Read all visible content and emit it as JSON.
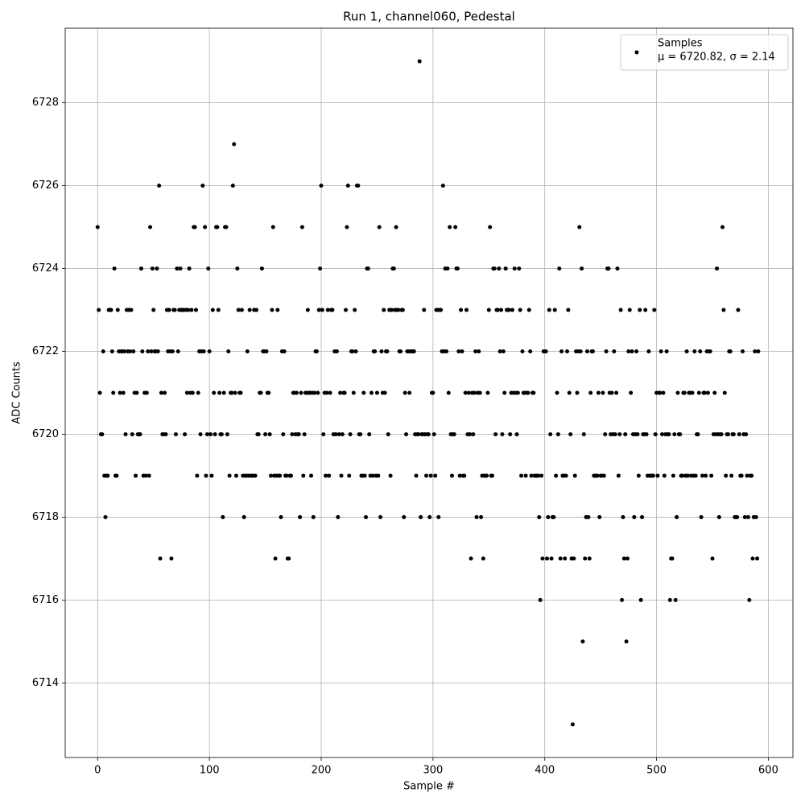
{
  "chart_data": {
    "type": "scatter",
    "title": "Run 1, channel060, Pedestal",
    "x_label": "Sample #",
    "y_label": "ADC Counts",
    "xlim": [
      -29,
      622
    ],
    "ylim": [
      6712.2,
      6729.8
    ],
    "xticks": [
      0,
      100,
      200,
      300,
      400,
      500,
      600
    ],
    "yticks": [
      6714,
      6716,
      6718,
      6720,
      6722,
      6724,
      6726,
      6728
    ],
    "grid": true,
    "legend": "upper right",
    "series": [
      {
        "name": "Samples",
        "label": "μ = 6720.82, σ = 2.14",
        "color": "#000000",
        "x": [
          0,
          1,
          2,
          3,
          4,
          5,
          6,
          7,
          8,
          9,
          10,
          11,
          12,
          13,
          14,
          15,
          16,
          17,
          18,
          19,
          20,
          21,
          22,
          23,
          24,
          25,
          26,
          27,
          28,
          29,
          30,
          31,
          32,
          33,
          34,
          35,
          36,
          37,
          38,
          39,
          40,
          41,
          42,
          43,
          44,
          45,
          46,
          47,
          48,
          49,
          50,
          51,
          52,
          53,
          54,
          55,
          56,
          57,
          58,
          59,
          60,
          61,
          62,
          63,
          64,
          65,
          66,
          67,
          68,
          69,
          70,
          71,
          72,
          73,
          74,
          75,
          76,
          77,
          78,
          79,
          80,
          81,
          82,
          83,
          84,
          85,
          86,
          87,
          88,
          89,
          90,
          91,
          92,
          93,
          94,
          95,
          96,
          97,
          98,
          99,
          100,
          101,
          102,
          103,
          104,
          105,
          106,
          107,
          108,
          109,
          110,
          111,
          112,
          113,
          114,
          115,
          116,
          117,
          118,
          119,
          120,
          121,
          122,
          123,
          124,
          125,
          126,
          127,
          128,
          129,
          130,
          131,
          132,
          133,
          134,
          135,
          136,
          137,
          138,
          139,
          140,
          141,
          142,
          143,
          144,
          145,
          146,
          147,
          148,
          149,
          150,
          151,
          152,
          153,
          154,
          155,
          156,
          157,
          158,
          159,
          160,
          161,
          162,
          163,
          164,
          165,
          166,
          167,
          168,
          169,
          170,
          171,
          172,
          173,
          174,
          175,
          176,
          177,
          178,
          179,
          180,
          181,
          182,
          183,
          184,
          185,
          186,
          187,
          188,
          189,
          190,
          191,
          192,
          193,
          194,
          195,
          196,
          197,
          198,
          199,
          200,
          201,
          202,
          203,
          204,
          205,
          206,
          207,
          208,
          209,
          210,
          211,
          212,
          213,
          214,
          215,
          216,
          217,
          218,
          219,
          220,
          221,
          222,
          223,
          224,
          225,
          226,
          227,
          228,
          229,
          230,
          231,
          232,
          233,
          234,
          235,
          236,
          237,
          238,
          239,
          240,
          241,
          242,
          243,
          244,
          245,
          246,
          247,
          248,
          249,
          250,
          251,
          252,
          253,
          254,
          255,
          256,
          257,
          258,
          259,
          260,
          261,
          262,
          263,
          264,
          265,
          266,
          267,
          268,
          269,
          270,
          271,
          272,
          273,
          274,
          275,
          276,
          277,
          278,
          279,
          280,
          281,
          282,
          283,
          284,
          285,
          286,
          287,
          288,
          289,
          290,
          291,
          292,
          293,
          294,
          295,
          296,
          297,
          298,
          299,
          300,
          301,
          302,
          303,
          304,
          305,
          306,
          307,
          308,
          309,
          310,
          311,
          312,
          313,
          314,
          315,
          316,
          317,
          318,
          319,
          320,
          321,
          322,
          323,
          324,
          325,
          326,
          327,
          328,
          329,
          330,
          331,
          332,
          333,
          334,
          335,
          336,
          337,
          338,
          339,
          340,
          341,
          342,
          343,
          344,
          345,
          346,
          347,
          348,
          349,
          350,
          351,
          352,
          353,
          354,
          355,
          356,
          357,
          358,
          359,
          360,
          361,
          362,
          363,
          364,
          365,
          366,
          367,
          368,
          369,
          370,
          371,
          372,
          373,
          374,
          375,
          376,
          377,
          378,
          379,
          380,
          381,
          382,
          383,
          384,
          385,
          386,
          387,
          388,
          389,
          390,
          391,
          392,
          393,
          394,
          395,
          396,
          397,
          398,
          399,
          400,
          401,
          402,
          403,
          404,
          405,
          406,
          407,
          408,
          409,
          410,
          411,
          412,
          413,
          414,
          415,
          416,
          417,
          418,
          419,
          420,
          421,
          422,
          423,
          424,
          425,
          426,
          427,
          428,
          429,
          430,
          431,
          432,
          433,
          434,
          435,
          436,
          437,
          438,
          439,
          440,
          441,
          442,
          443,
          444,
          445,
          446,
          447,
          448,
          449,
          450,
          451,
          452,
          453,
          454,
          455,
          456,
          457,
          458,
          459,
          460,
          461,
          462,
          463,
          464,
          465,
          466,
          467,
          468,
          469,
          470,
          471,
          472,
          473,
          474,
          475,
          476,
          477,
          478,
          479,
          480,
          481,
          482,
          483,
          484,
          485,
          486,
          487,
          488,
          489,
          490,
          491,
          492,
          493,
          494,
          495,
          496,
          497,
          498,
          499,
          500,
          501,
          502,
          503,
          504,
          505,
          506,
          507,
          508,
          509,
          510,
          511,
          512,
          513,
          514,
          515,
          516,
          517,
          518,
          519,
          520,
          521,
          522,
          523,
          524,
          525,
          526,
          527,
          528,
          529,
          530,
          531,
          532,
          533,
          534,
          535,
          536,
          537,
          538,
          539,
          540,
          541,
          542,
          543,
          544,
          545,
          546,
          547,
          548,
          549,
          550,
          551,
          552,
          553,
          554,
          555,
          556,
          557,
          558,
          559,
          560,
          561,
          562,
          563,
          564,
          565,
          566,
          567,
          568,
          569,
          570,
          571,
          572,
          573,
          574,
          575,
          576,
          577,
          578,
          579,
          580,
          581,
          582,
          583,
          584,
          585,
          586,
          587,
          588,
          589,
          590,
          591
        ],
        "values": [
          6725,
          6723,
          6721,
          6720,
          6720,
          6722,
          6719,
          6718,
          6719,
          6719,
          6723,
          6723,
          6723,
          6722,
          6721,
          6724,
          6719,
          6719,
          6723,
          6722,
          6721,
          6722,
          6722,
          6721,
          6722,
          6720,
          6723,
          6722,
          6723,
          6722,
          6723,
          6720,
          6722,
          6721,
          6719,
          6721,
          6720,
          6720,
          6720,
          6724,
          6722,
          6719,
          6721,
          6719,
          6721,
          6722,
          6719,
          6725,
          6722,
          6724,
          6723,
          6722,
          6722,
          6724,
          6722,
          6726,
          6717,
          6721,
          6720,
          6720,
          6721,
          6720,
          6723,
          6722,
          6723,
          6722,
          6717,
          6722,
          6723,
          6723,
          6720,
          6724,
          6722,
          6723,
          6724,
          6723,
          6723,
          6723,
          6720,
          6723,
          6721,
          6723,
          6724,
          6721,
          6723,
          6721,
          6725,
          6725,
          6723,
          6719,
          6721,
          6722,
          6720,
          6722,
          6726,
          6722,
          6725,
          6719,
          6720,
          6724,
          6722,
          6720,
          6719,
          6723,
          6721,
          6720,
          6725,
          6725,
          6723,
          6721,
          6720,
          6720,
          6718,
          6721,
          6725,
          6725,
          6720,
          6722,
          6719,
          6721,
          6721,
          6726,
          6727,
          6721,
          6719,
          6724,
          6723,
          6721,
          6721,
          6723,
          6719,
          6718,
          6719,
          6719,
          6722,
          6719,
          6723,
          6719,
          6719,
          6719,
          6723,
          6719,
          6723,
          6720,
          6720,
          6721,
          6721,
          6724,
          6722,
          6722,
          6720,
          6722,
          6721,
          6721,
          6720,
          6719,
          6723,
          6725,
          6719,
          6717,
          6719,
          6723,
          6719,
          6719,
          6718,
          6722,
          6720,
          6722,
          6719,
          6719,
          6717,
          6717,
          6719,
          6719,
          6720,
          6721,
          6721,
          6720,
          6721,
          6720,
          6720,
          6718,
          6721,
          6725,
          6719,
          6720,
          6721,
          6721,
          6723,
          6721,
          6721,
          6719,
          6721,
          6718,
          6721,
          6722,
          6722,
          6721,
          6723,
          6724,
          6726,
          6723,
          6720,
          6721,
          6719,
          6721,
          6723,
          6719,
          6721,
          6723,
          6723,
          6720,
          6722,
          6720,
          6722,
          6718,
          6720,
          6721,
          6719,
          6720,
          6721,
          6721,
          6723,
          6725,
          6726,
          6719,
          6720,
          6722,
          6722,
          6721,
          6723,
          6722,
          6726,
          6726,
          6720,
          6720,
          6719,
          6719,
          6721,
          6719,
          6718,
          6724,
          6724,
          6720,
          6719,
          6721,
          6719,
          6722,
          6722,
          6719,
          6721,
          6719,
          6725,
          6718,
          6722,
          6721,
          6723,
          6721,
          6722,
          6722,
          6720,
          6723,
          6719,
          6723,
          6724,
          6724,
          6723,
          6725,
          6723,
          6723,
          6722,
          6722,
          6723,
          6723,
          6718,
          6721,
          6720,
          6722,
          6722,
          6721,
          6722,
          6722,
          6722,
          6722,
          6720,
          6719,
          6720,
          6720,
          6729,
          6718,
          6720,
          6720,
          6723,
          6720,
          6719,
          6720,
          6720,
          6718,
          6719,
          6721,
          6721,
          6720,
          6719,
          6723,
          6723,
          6718,
          6723,
          6723,
          6722,
          6726,
          6722,
          6724,
          6722,
          6724,
          6721,
          6725,
          6720,
          6719,
          6720,
          6720,
          6725,
          6724,
          6724,
          6722,
          6719,
          6723,
          6722,
          6719,
          6719,
          6721,
          6723,
          6720,
          6721,
          6720,
          6717,
          6721,
          6720,
          6721,
          6722,
          6718,
          6721,
          6722,
          6721,
          6718,
          6719,
          6717,
          6719,
          6719,
          6719,
          6721,
          6723,
          6725,
          6719,
          6719,
          6724,
          6724,
          6720,
          6723,
          6723,
          6724,
          6722,
          6723,
          6720,
          6722,
          6721,
          6724,
          6723,
          6723,
          6723,
          6720,
          6721,
          6723,
          6721,
          6724,
          6721,
          6720,
          6721,
          6724,
          6723,
          6719,
          6722,
          6721,
          6721,
          6719,
          6721,
          6721,
          6723,
          6722,
          6719,
          6721,
          6721,
          6719,
          6719,
          6719,
          6719,
          6718,
          6716,
          6719,
          6717,
          6722,
          6722,
          6722,
          6717,
          6718,
          6723,
          6720,
          6717,
          6718,
          6718,
          6723,
          6719,
          6721,
          6720,
          6724,
          6717,
          6722,
          6719,
          6719,
          6717,
          6719,
          6722,
          6723,
          6721,
          6720,
          6717,
          6713,
          6717,
          6719,
          6722,
          6721,
          6722,
          6725,
          6722,
          6724,
          6715,
          6720,
          6717,
          6718,
          6722,
          6718,
          6717,
          6721,
          6722,
          6722,
          6719,
          6719,
          6719,
          6719,
          6721,
          6718,
          6719,
          6719,
          6721,
          6719,
          6720,
          6722,
          6724,
          6724,
          6721,
          6720,
          6721,
          6720,
          6722,
          6720,
          6721,
          6724,
          6719,
          6720,
          6723,
          6716,
          6718,
          6717,
          6720,
          6715,
          6717,
          6722,
          6723,
          6721,
          6722,
          6720,
          6718,
          6720,
          6722,
          6720,
          6719,
          6723,
          6716,
          6718,
          6720,
          6720,
          6723,
          6720,
          6719,
          6722,
          6719,
          6719,
          6719,
          6719,
          6723,
          6720,
          6721,
          6719,
          6721,
          6721,
          6722,
          6720,
          6721,
          6719,
          6720,
          6722,
          6720,
          6720,
          6716,
          6717,
          6717,
          6719,
          6720,
          6716,
          6718,
          6721,
          6720,
          6720,
          6719,
          6719,
          6721,
          6721,
          6719,
          6722,
          6719,
          6721,
          6721,
          6719,
          6721,
          6719,
          6722,
          6719,
          6720,
          6720,
          6721,
          6722,
          6718,
          6719,
          6721,
          6721,
          6719,
          6722,
          6721,
          6722,
          6722,
          6719,
          6717,
          6720,
          6721,
          6720,
          6724,
          6720,
          6718,
          6720,
          6720,
          6725,
          6723,
          6721,
          6719,
          6720,
          6720,
          6722,
          6722,
          6719,
          6720,
          6720,
          6718,
          6718,
          6718,
          6723,
          6720,
          6719,
          6719,
          6722,
          6720,
          6718,
          6720,
          6719,
          6718,
          6716,
          6719,
          6719,
          6717,
          6718,
          6722,
          6718,
          6717,
          6722
        ]
      }
    ]
  }
}
